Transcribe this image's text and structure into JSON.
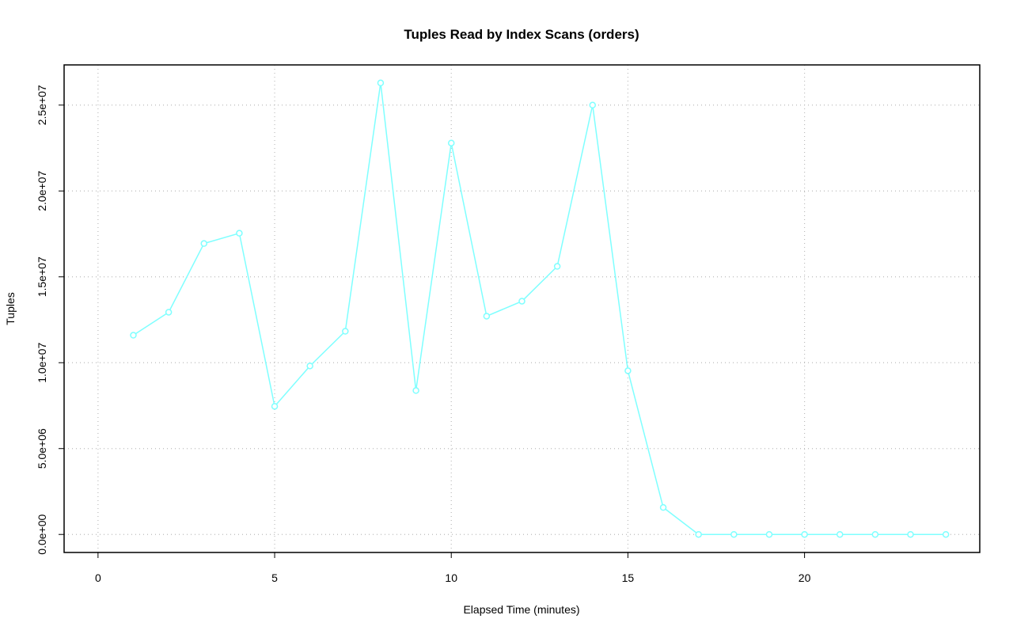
{
  "chart_data": {
    "type": "line",
    "title": "Tuples Read by Index Scans (orders)",
    "x_label": "Elapsed Time (minutes)",
    "y_label": "Tuples",
    "x": [
      1,
      2,
      3,
      4,
      5,
      6,
      7,
      8,
      9,
      10,
      11,
      12,
      13,
      14,
      15,
      16,
      17,
      18,
      19,
      20,
      21,
      22,
      23,
      24
    ],
    "series": [
      {
        "name": "orders",
        "color": "#7fffff",
        "values": [
          11600000,
          12940000,
          16940000,
          17540000,
          7460000,
          9810000,
          11830000,
          26290000,
          8380000,
          22790000,
          12710000,
          13580000,
          15610000,
          25000000,
          9530000,
          1570000,
          0,
          0,
          0,
          0,
          0,
          0,
          0,
          0
        ]
      }
    ],
    "xlim": [
      -0.96,
      24.96
    ],
    "xticks": [
      0,
      5,
      10,
      15,
      20
    ],
    "ylim": [
      -1050000,
      27340000
    ],
    "yticks": [
      {
        "value": 0,
        "label": "0.0e+00"
      },
      {
        "value": 5000000,
        "label": "5.0e+06"
      },
      {
        "value": 10000000,
        "label": "1.0e+07"
      },
      {
        "value": 15000000,
        "label": "1.5e+07"
      },
      {
        "value": 20000000,
        "label": "2.0e+07"
      },
      {
        "value": 25000000,
        "label": "2.5e+07"
      }
    ],
    "grid": true
  }
}
